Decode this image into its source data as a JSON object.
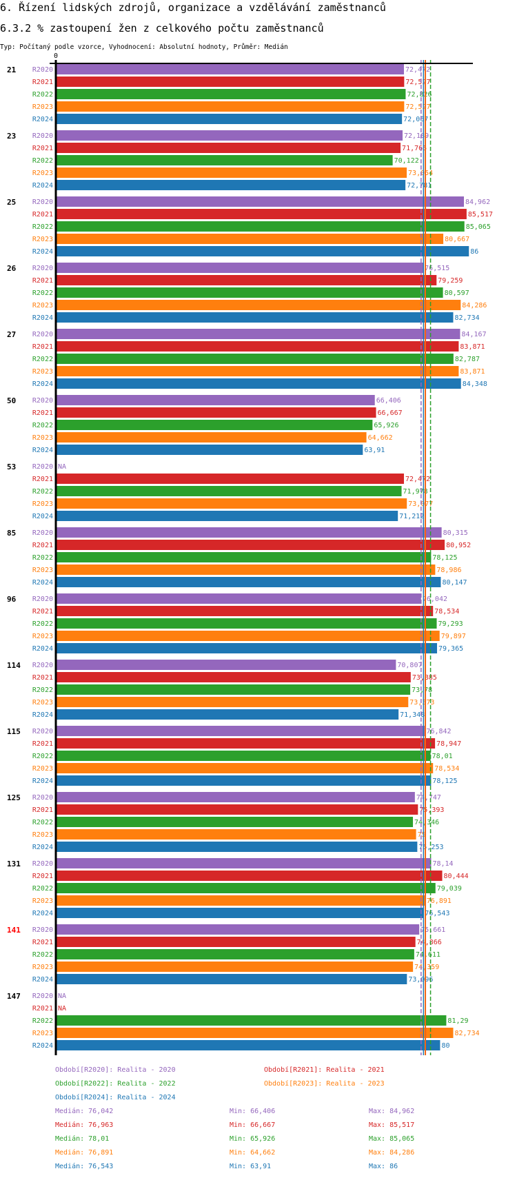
{
  "header": {
    "title": "6. Řízení lidských zdrojů, organizace a vzdělávání zaměstnanců",
    "subtitle": "6.3.2 % zastoupení žen z celkového počtu zaměstnanců",
    "info": "Typ: Počítaný podle vzorce, Vyhodnocení: Absolutní hodnoty, Průměr: Medián"
  },
  "chart_data": {
    "type": "bar",
    "orientation": "horizontal",
    "axis_tick_label": "0",
    "na_label": "NA",
    "series": [
      {
        "name": "R2020",
        "color": "#9467bd"
      },
      {
        "name": "R2021",
        "color": "#d62728"
      },
      {
        "name": "R2022",
        "color": "#2ca02c"
      },
      {
        "name": "R2023",
        "color": "#ff7f0e"
      },
      {
        "name": "R2024",
        "color": "#1f77b4"
      }
    ],
    "highlight_color": "#ff0000",
    "groups": [
      {
        "label": "21",
        "values": [
          72.472,
          72.527,
          72.826,
          72.527,
          72.067
        ]
      },
      {
        "label": "23",
        "values": [
          72.189,
          71.765,
          70.122,
          73.054,
          72.781
        ]
      },
      {
        "label": "25",
        "values": [
          84.962,
          85.517,
          85.065,
          80.667,
          86
        ]
      },
      {
        "label": "26",
        "values": [
          76.515,
          79.259,
          80.597,
          84.286,
          82.734
        ]
      },
      {
        "label": "27",
        "values": [
          84.167,
          83.871,
          82.787,
          83.871,
          84.348
        ]
      },
      {
        "label": "50",
        "values": [
          66.406,
          66.667,
          65.926,
          64.662,
          63.91
        ]
      },
      {
        "label": "53",
        "values": [
          null,
          72.472,
          71.978,
          73.077,
          71.212
        ]
      },
      {
        "label": "85",
        "values": [
          80.315,
          80.952,
          78.125,
          78.986,
          80.147
        ]
      },
      {
        "label": "96",
        "values": [
          76.042,
          78.534,
          79.293,
          79.897,
          79.365
        ]
      },
      {
        "label": "114",
        "values": [
          70.807,
          73.885,
          73.78,
          73.373,
          71.348
        ]
      },
      {
        "label": "115",
        "values": [
          76.842,
          78.947,
          78.01,
          78.534,
          78.125
        ]
      },
      {
        "label": "125",
        "values": [
          74.747,
          75.393,
          74.346,
          75,
          75.253
        ]
      },
      {
        "label": "131",
        "values": [
          78.14,
          80.444,
          79.039,
          76.891,
          76.543
        ]
      },
      {
        "label": "141",
        "values": [
          75.661,
          74.866,
          74.611,
          74.359,
          73.096
        ],
        "highlighted": true
      },
      {
        "label": "147",
        "values": [
          null,
          null,
          81.29,
          82.734,
          80
        ]
      }
    ],
    "median_lines": [
      76.042,
      76.963,
      78.01,
      76.891,
      76.543
    ]
  },
  "legend": {
    "periods": [
      "Období[R2020]: Realita - 2020",
      "Období[R2021]: Realita - 2021",
      "Období[R2022]: Realita - 2022",
      "Období[R2023]: Realita - 2023",
      "Období[R2024]: Realita - 2024"
    ],
    "stats": [
      {
        "median": "Medián: 76,042",
        "min": "Min: 66,406",
        "max": "Max: 84,962"
      },
      {
        "median": "Medián: 76,963",
        "min": "Min: 66,667",
        "max": "Max: 85,517"
      },
      {
        "median": "Medián: 78,01",
        "min": "Min: 65,926",
        "max": "Max: 85,065"
      },
      {
        "median": "Medián: 76,891",
        "min": "Min: 64,662",
        "max": "Max: 84,286"
      },
      {
        "median": "Medián: 76,543",
        "min": "Min: 63,91",
        "max": "Max: 86"
      }
    ]
  }
}
